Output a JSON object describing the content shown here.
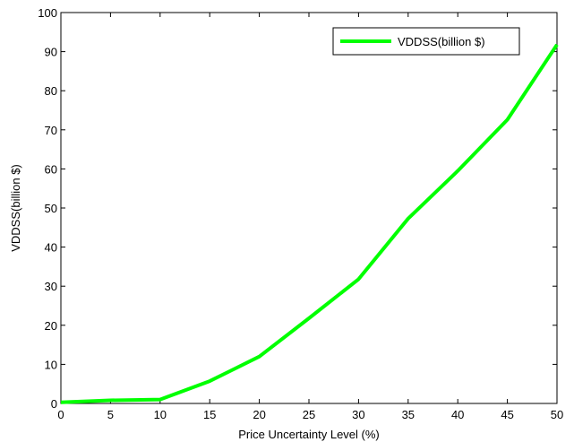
{
  "chart_data": {
    "type": "line",
    "title": "",
    "xlabel": "Price Uncertainty Level (%)",
    "ylabel": "VDDSS(billion $)",
    "xlim": [
      0,
      50
    ],
    "ylim": [
      0,
      100
    ],
    "xticks": [
      0,
      5,
      10,
      15,
      20,
      25,
      30,
      35,
      40,
      45,
      50
    ],
    "yticks": [
      0,
      10,
      20,
      30,
      40,
      50,
      60,
      70,
      80,
      90,
      100
    ],
    "grid": false,
    "legend_position": "top-right",
    "series": [
      {
        "name": "VDDSS(billion $)",
        "color": "#00ff00",
        "x": [
          0,
          5,
          10,
          15,
          20,
          25,
          30,
          35,
          40,
          45,
          50
        ],
        "y": [
          0.3,
          0.8,
          1.0,
          5.7,
          12.0,
          21.8,
          31.8,
          47.3,
          59.5,
          72.6,
          91.8
        ]
      }
    ]
  }
}
